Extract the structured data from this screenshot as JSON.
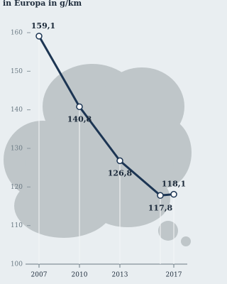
{
  "chart_data": {
    "type": "line",
    "title": "in Europa in g/km",
    "x": [
      2007,
      2010,
      2013,
      2016,
      2017
    ],
    "series": [
      {
        "color": "#1c3553",
        "values": [
          159.1,
          140.8,
          126.8,
          117.8,
          118.1
        ],
        "value_labels": [
          "159,1",
          "140,8",
          "126,8",
          "117,8",
          "118,1"
        ]
      }
    ],
    "xlim": [
      2006,
      2018
    ],
    "xticks": [
      2007,
      2010,
      2013,
      2017
    ],
    "ylim": [
      100,
      160
    ],
    "yticks": [
      100,
      110,
      120,
      130,
      140,
      150,
      160
    ]
  }
}
